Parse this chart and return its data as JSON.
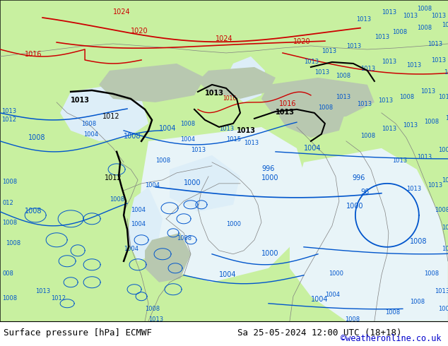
{
  "title_left": "Surface pressure [hPa] ECMWF",
  "title_right": "Sa 25-05-2024 12:00 UTC (18+18)",
  "credit": "©weatheronline.co.uk",
  "fig_width": 6.34,
  "fig_height": 4.9,
  "dpi": 100,
  "land_green": "#c8f0a0",
  "sea_white": "#e8f4f8",
  "mountain_gray": "#b8c8b0",
  "contour_red": "#cc0000",
  "contour_blue": "#0055cc",
  "contour_black": "#000000",
  "contour_gray": "#808080",
  "bottom_text_color": "#000000",
  "credit_color": "#0000cc",
  "font_size_bottom": 9.0,
  "font_size_credit": 8.5,
  "label_fontsize": 7.0,
  "label_fontsize_sm": 6.0
}
